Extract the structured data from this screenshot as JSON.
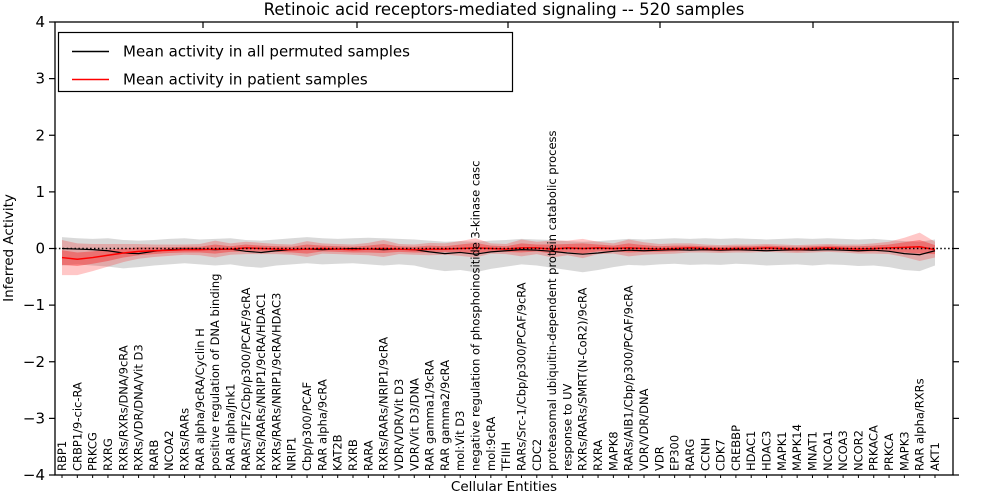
{
  "title": "Retinoic acid receptors-mediated signaling -- 520 samples",
  "colors": {
    "permuted_line": "#000000",
    "patient_line": "#ff0000",
    "permuted_band": "rgba(120,120,120,0.28)",
    "patient_band_outer": "rgba(255,0,0,0.22)",
    "patient_band_inner": "rgba(255,0,0,0.33)",
    "zero_line": "#000000",
    "frame": "#000000"
  },
  "chart_data": {
    "type": "line",
    "title": "Retinoic acid receptors-mediated signaling -- 520 samples",
    "xlabel": "Cellular Entities",
    "ylabel": "Inferred Activity",
    "ylim": [
      -4,
      4
    ],
    "yticks": [
      -4,
      -3,
      -2,
      -1,
      0,
      1,
      2,
      3,
      4
    ],
    "grid": false,
    "zero_reference_line": 0,
    "legend_position": "upper left",
    "legend": [
      {
        "label": "Mean activity in all permuted samples",
        "color": "#000000"
      },
      {
        "label": "Mean activity in patient samples",
        "color": "#ff0000"
      }
    ],
    "categories": [
      "RBP1",
      "CRBP1/9-cic-RA",
      "PRKCG",
      "RXRG",
      "RXRs/RXRs/DNA/9cRA",
      "RXRs/VDR/DNA/Vit D3",
      "RARB",
      "NCOA2",
      "RXRs/RARs",
      "RAR alpha/9cRA/Cyclin H",
      "positive regulation of DNA binding",
      "RAR alpha/Jnk1",
      "RARs/TIF2/Cbp/p300/PCAF/9cRA",
      "RXRs/RARs/NRIP1/9cRA/HDAC1",
      "RXRs/RARs/NRIP1/9cRA/HDAC3",
      "NRIP1",
      "Cbp/p300/PCAF",
      "RAR alpha/9cRA",
      "KAT2B",
      "RXRB",
      "RARA",
      "RXRs/RARs/NRIP1/9cRA",
      "VDR/VDR/Vit D3",
      "VDR/Vit D3/DNA",
      "RAR gamma1/9cRA",
      "RAR gamma2/9cRA",
      "mol:Vit D3",
      "negative regulation of phosphoinositide 3-kinase casc",
      "mol:9cRA",
      "TFIIH",
      "RARs/Src-1/Cbp/p300/PCAF/9cRA",
      "CDC2",
      "proteasomal ubiquitin-dependent protein catabolic process",
      "response to UV",
      "RXRs/RARs/SMRT(N-CoR2)/9cRA",
      "RXRA",
      "MAPK8",
      "RARs/AIB1/Cbp/p300/PCAF/9cRA",
      "VDR/VDR/DNA",
      "VDR",
      "EP300",
      "RARG",
      "CCNH",
      "CDK7",
      "CREBBP",
      "HDAC1",
      "HDAC3",
      "MAPK1",
      "MAPK14",
      "MNAT1",
      "NCOA1",
      "NCOA3",
      "NCOR2",
      "PRKACA",
      "PRKCA",
      "MAPK3",
      "RAR alpha/RXRs",
      "AKT1"
    ],
    "series": [
      {
        "name": "Mean activity in all permuted samples",
        "color": "#000000",
        "values": [
          0.0,
          -0.01,
          -0.02,
          -0.04,
          -0.08,
          -0.09,
          -0.05,
          -0.02,
          -0.01,
          -0.01,
          -0.02,
          -0.01,
          -0.05,
          -0.07,
          -0.04,
          -0.02,
          -0.01,
          -0.02,
          -0.01,
          0.0,
          -0.01,
          -0.02,
          -0.01,
          -0.02,
          -0.06,
          -0.09,
          -0.07,
          -0.1,
          -0.06,
          -0.04,
          -0.02,
          -0.03,
          -0.05,
          -0.08,
          -0.1,
          -0.08,
          -0.05,
          -0.03,
          -0.04,
          -0.03,
          -0.02,
          -0.03,
          -0.02,
          -0.03,
          -0.02,
          -0.03,
          -0.04,
          -0.03,
          -0.02,
          -0.03,
          -0.02,
          -0.03,
          -0.04,
          -0.03,
          -0.05,
          -0.09,
          -0.11,
          -0.04
        ],
        "band_hi": [
          0.2,
          0.18,
          0.17,
          0.18,
          0.15,
          0.14,
          0.15,
          0.17,
          0.18,
          0.16,
          0.17,
          0.18,
          0.15,
          0.14,
          0.16,
          0.18,
          0.2,
          0.18,
          0.17,
          0.18,
          0.19,
          0.18,
          0.17,
          0.16,
          0.14,
          0.12,
          0.13,
          0.12,
          0.14,
          0.15,
          0.17,
          0.16,
          0.15,
          0.13,
          0.12,
          0.13,
          0.15,
          0.17,
          0.16,
          0.17,
          0.18,
          0.17,
          0.18,
          0.17,
          0.18,
          0.17,
          0.16,
          0.17,
          0.18,
          0.17,
          0.18,
          0.17,
          0.16,
          0.17,
          0.15,
          0.13,
          0.12,
          0.16
        ],
        "band_lo": [
          -0.3,
          -0.28,
          -0.3,
          -0.32,
          -0.35,
          -0.33,
          -0.3,
          -0.28,
          -0.26,
          -0.28,
          -0.3,
          -0.28,
          -0.32,
          -0.34,
          -0.3,
          -0.28,
          -0.26,
          -0.28,
          -0.27,
          -0.26,
          -0.28,
          -0.3,
          -0.28,
          -0.3,
          -0.36,
          -0.4,
          -0.38,
          -0.42,
          -0.36,
          -0.32,
          -0.28,
          -0.3,
          -0.34,
          -0.38,
          -0.42,
          -0.38,
          -0.33,
          -0.29,
          -0.3,
          -0.28,
          -0.27,
          -0.29,
          -0.28,
          -0.29,
          -0.27,
          -0.28,
          -0.3,
          -0.29,
          -0.28,
          -0.3,
          -0.28,
          -0.29,
          -0.31,
          -0.3,
          -0.33,
          -0.38,
          -0.4,
          -0.3
        ]
      },
      {
        "name": "Mean activity in patient samples",
        "color": "#ff0000",
        "values": [
          -0.16,
          -0.19,
          -0.16,
          -0.12,
          -0.08,
          -0.05,
          -0.04,
          -0.03,
          -0.02,
          -0.02,
          -0.01,
          -0.01,
          0.01,
          0.0,
          -0.01,
          -0.02,
          -0.01,
          0.0,
          -0.01,
          -0.02,
          -0.01,
          0.0,
          -0.01,
          -0.02,
          -0.01,
          -0.01,
          0.0,
          0.01,
          0.0,
          -0.01,
          0.01,
          0.01,
          -0.01,
          0.01,
          0.0,
          0.01,
          0.0,
          0.01,
          0.0,
          -0.01,
          0.0,
          0.01,
          0.0,
          -0.01,
          0.0,
          0.0,
          0.01,
          0.0,
          -0.01,
          0.0,
          0.01,
          0.0,
          -0.01,
          0.0,
          0.01,
          0.02,
          0.03,
          -0.02
        ],
        "band_inner_halfwidth": [
          0.13,
          0.12,
          0.11,
          0.1,
          0.08,
          0.07,
          0.06,
          0.05,
          0.05,
          0.05,
          0.08,
          0.05,
          0.06,
          0.05,
          0.05,
          0.05,
          0.08,
          0.05,
          0.05,
          0.05,
          0.06,
          0.08,
          0.05,
          0.05,
          0.06,
          0.05,
          0.07,
          0.09,
          0.05,
          0.05,
          0.08,
          0.06,
          0.08,
          0.07,
          0.09,
          0.06,
          0.05,
          0.08,
          0.06,
          0.05,
          0.05,
          0.04,
          0.04,
          0.04,
          0.04,
          0.04,
          0.04,
          0.04,
          0.04,
          0.04,
          0.04,
          0.04,
          0.05,
          0.05,
          0.06,
          0.09,
          0.12,
          0.08
        ],
        "band_outer_halfwidth": [
          0.31,
          0.28,
          0.24,
          0.2,
          0.16,
          0.13,
          0.11,
          0.1,
          0.09,
          0.1,
          0.15,
          0.1,
          0.11,
          0.1,
          0.09,
          0.09,
          0.14,
          0.09,
          0.09,
          0.09,
          0.11,
          0.15,
          0.09,
          0.09,
          0.11,
          0.1,
          0.13,
          0.17,
          0.09,
          0.09,
          0.15,
          0.11,
          0.15,
          0.13,
          0.17,
          0.11,
          0.09,
          0.15,
          0.11,
          0.09,
          0.09,
          0.08,
          0.07,
          0.07,
          0.07,
          0.07,
          0.07,
          0.07,
          0.07,
          0.07,
          0.07,
          0.07,
          0.08,
          0.09,
          0.11,
          0.17,
          0.25,
          0.14
        ]
      }
    ]
  }
}
